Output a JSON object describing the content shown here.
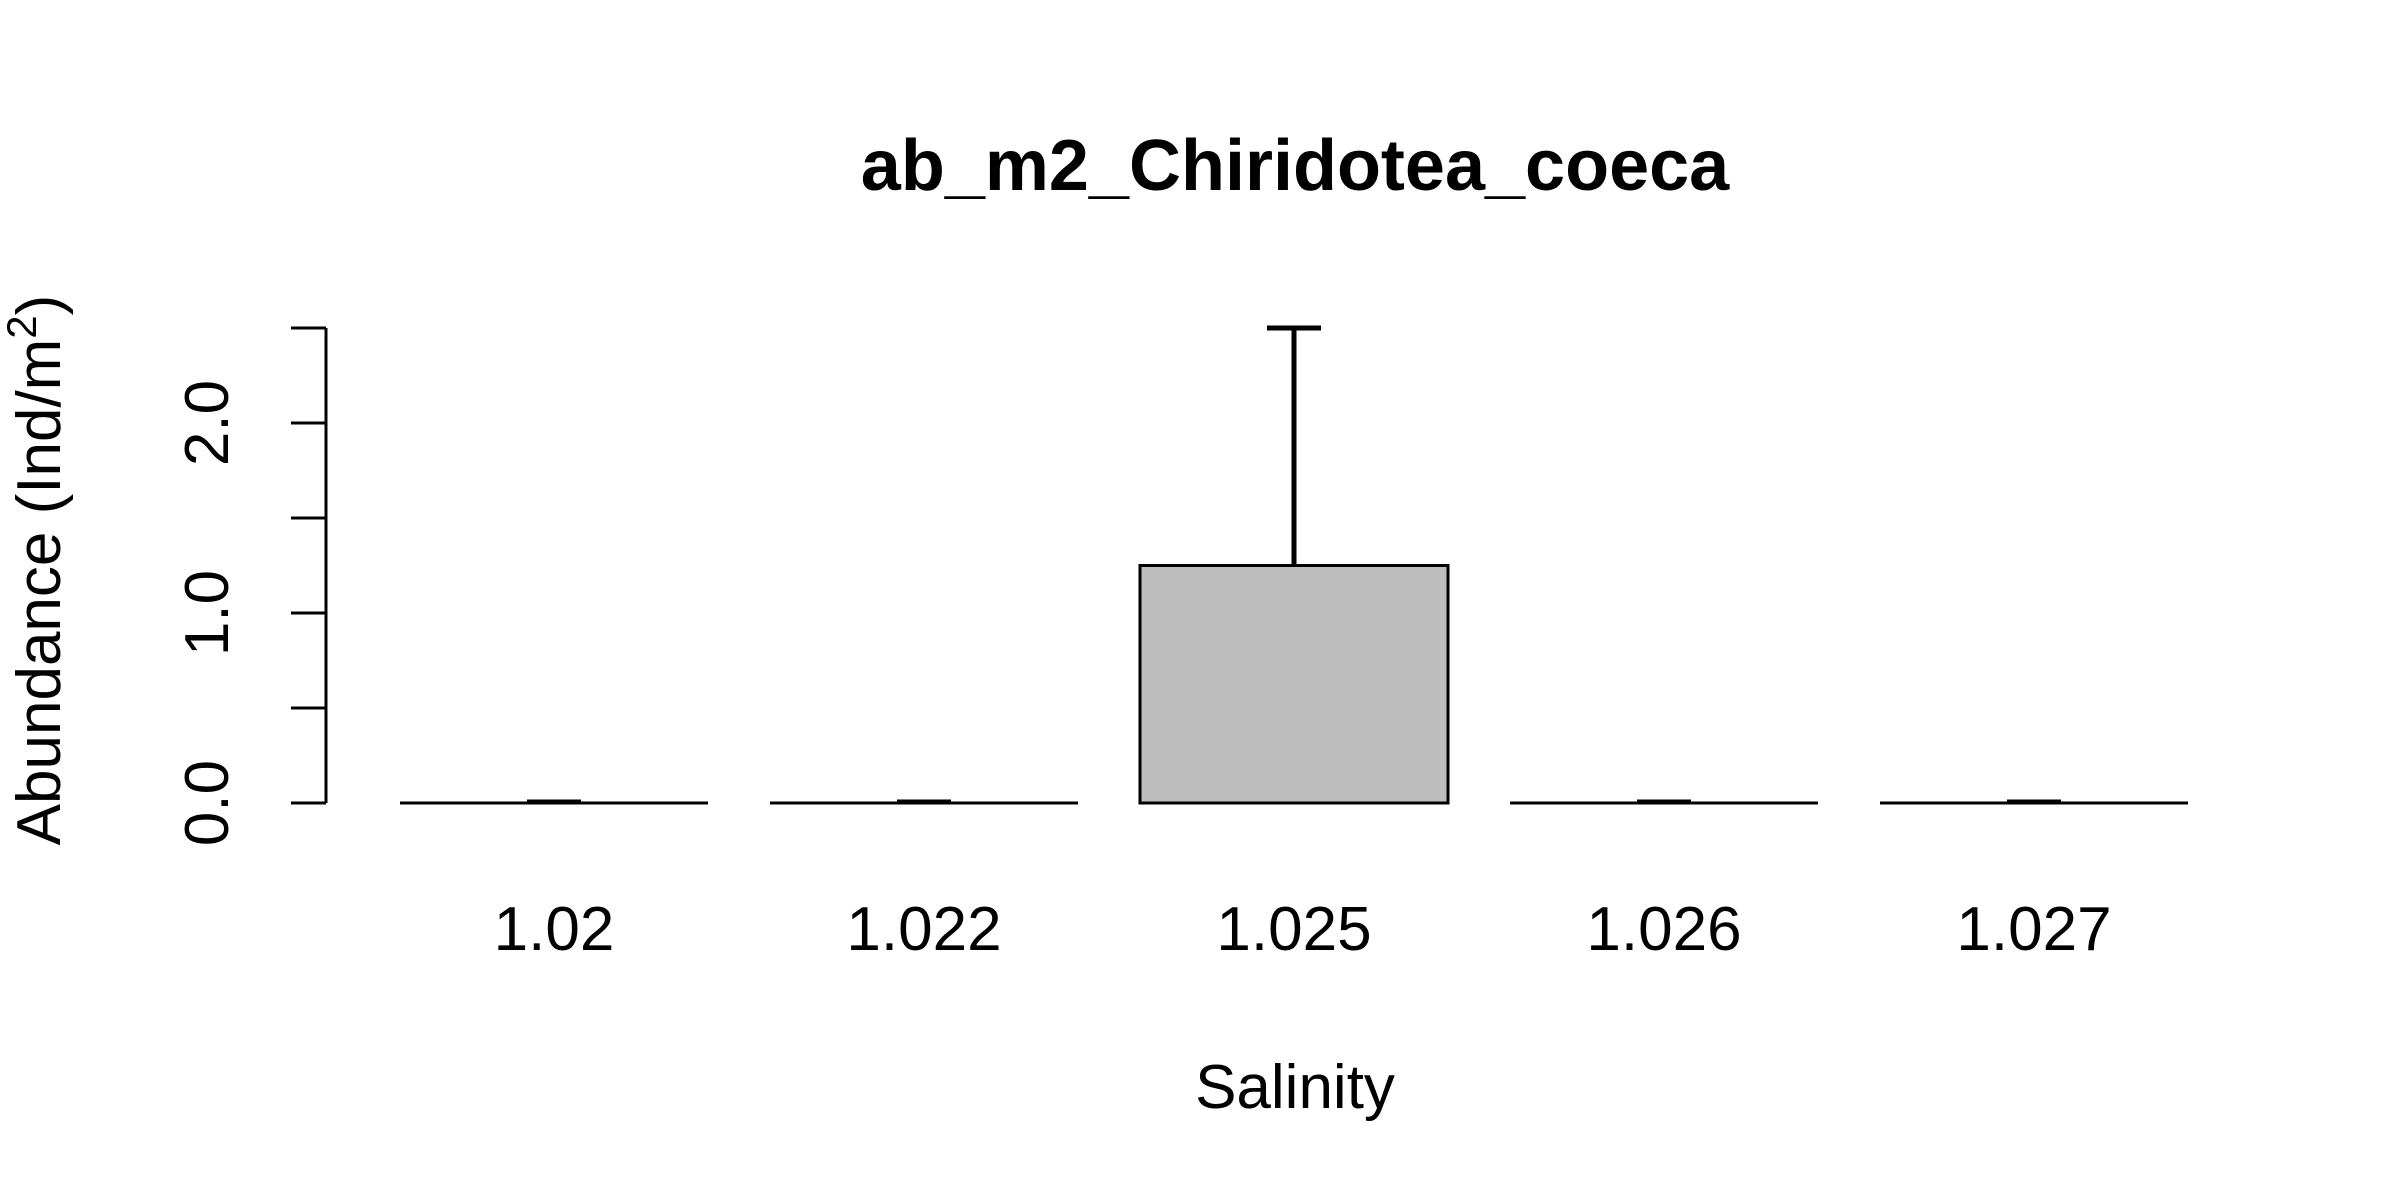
{
  "chart_data": {
    "type": "bar",
    "title": "ab_m2_Chiridotea_coeca",
    "xlabel": "Salinity",
    "ylabel_main": "Abundance (Ind/m",
    "ylabel_sup": "2",
    "ylabel_close": ")",
    "categories": [
      "1.02",
      "1.022",
      "1.025",
      "1.026",
      "1.027"
    ],
    "values": [
      0,
      0,
      1.25,
      0,
      0
    ],
    "error_upper": [
      0,
      0,
      2.5,
      0,
      0
    ],
    "ylim": [
      0,
      2.5
    ],
    "y_ticks": [
      0,
      0.5,
      1.0,
      1.5,
      2.0,
      2.5
    ],
    "y_tick_labels": [
      {
        "value": 0,
        "text": "0.0"
      },
      {
        "value": 1.0,
        "text": "1.0"
      },
      {
        "value": 2.0,
        "text": "2.0"
      }
    ],
    "bar_fill": "#bebebe",
    "bar_stroke": "#000000",
    "grid": false,
    "legend": "none"
  }
}
